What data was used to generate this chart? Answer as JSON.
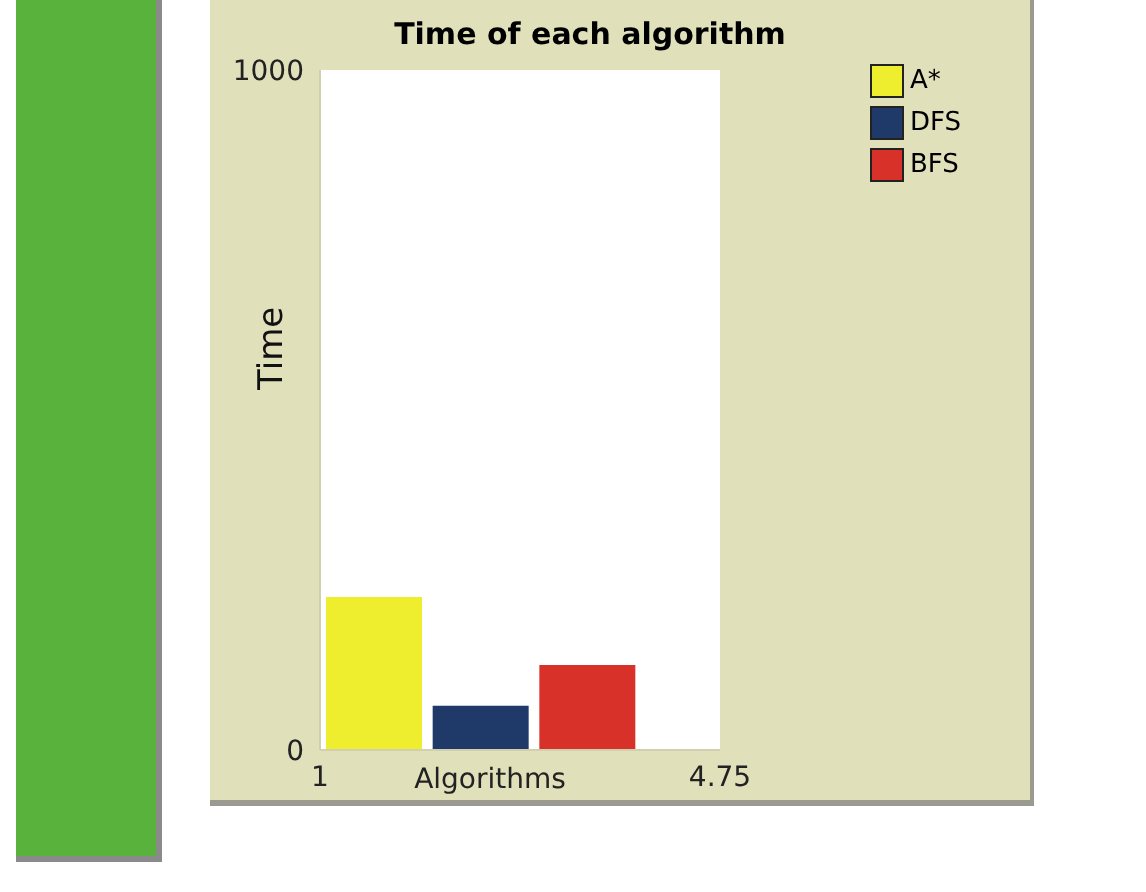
{
  "chart_data": {
    "type": "bar",
    "title": "Time of each algorithm",
    "xlabel": "Algorithms",
    "ylabel": "Time",
    "series": [
      {
        "name": "A*",
        "color": "#eeee2e",
        "x": [
          1.5
        ],
        "values": [
          225
        ]
      },
      {
        "name": "DFS",
        "color": "#1f3a68",
        "x": [
          2.5
        ],
        "values": [
          65
        ]
      },
      {
        "name": "BFS",
        "color": "#d8312a",
        "x": [
          3.5
        ],
        "values": [
          125
        ]
      }
    ],
    "xlim": [
      1,
      4.75
    ],
    "xticks": [
      1,
      4.75
    ],
    "ylim": [
      0,
      1000
    ],
    "yticks": [
      0,
      1000
    ],
    "legend": "top right"
  }
}
